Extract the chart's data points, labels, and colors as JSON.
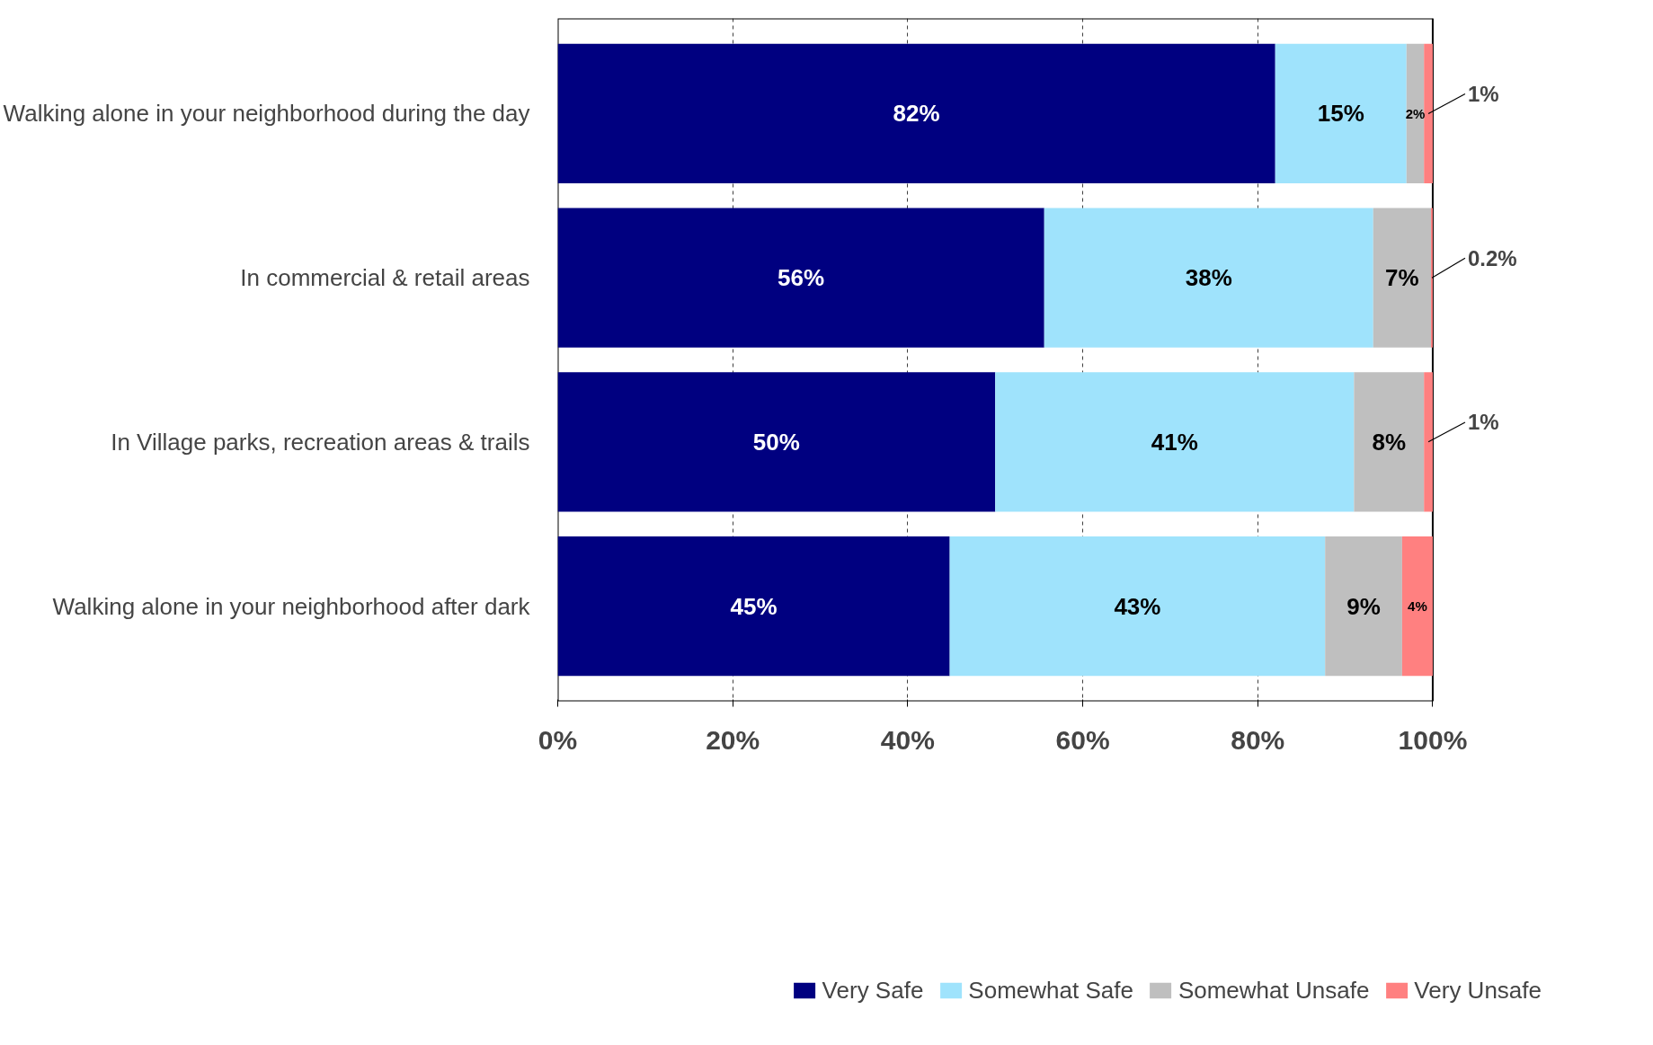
{
  "chart_data": {
    "type": "bar",
    "orientation": "horizontal",
    "stacked": true,
    "categories": [
      "Walking alone in your neighborhood during the day",
      "In commercial & retail areas",
      "In Village parks, recreation areas & trails",
      "Walking alone in your neighborhood after dark"
    ],
    "series": [
      {
        "name": "Very Safe",
        "color": "#000080",
        "values": [
          82,
          55.6,
          50,
          44.8
        ],
        "value_labels": [
          "82%",
          "56%",
          "50%",
          "45%"
        ]
      },
      {
        "name": "Somewhat Safe",
        "color": "#9fe3fc",
        "values": [
          15,
          37.6,
          41,
          42.9
        ],
        "value_labels": [
          "15%",
          "38%",
          "41%",
          "43%"
        ]
      },
      {
        "name": "Somewhat Unsafe",
        "color": "#bfbfbf",
        "values": [
          2,
          6.6,
          8,
          8.8
        ],
        "value_labels": [
          "2%",
          "7%",
          "8%",
          "9%"
        ]
      },
      {
        "name": "Very Unsafe",
        "color": "#ff8080",
        "values": [
          1,
          0.2,
          1,
          3.5
        ],
        "value_labels": [
          "1%",
          "0.2%",
          "1%",
          "4%"
        ]
      }
    ],
    "xlim": [
      0,
      100
    ],
    "xticks": [
      {
        "value": 0,
        "label": "0%"
      },
      {
        "value": 20,
        "label": "20%"
      },
      {
        "value": 40,
        "label": "40%"
      },
      {
        "value": 60,
        "label": "60%"
      },
      {
        "value": 80,
        "label": "80%"
      },
      {
        "value": 100,
        "label": "100%"
      }
    ],
    "grid": "x",
    "legend": "bottom"
  }
}
